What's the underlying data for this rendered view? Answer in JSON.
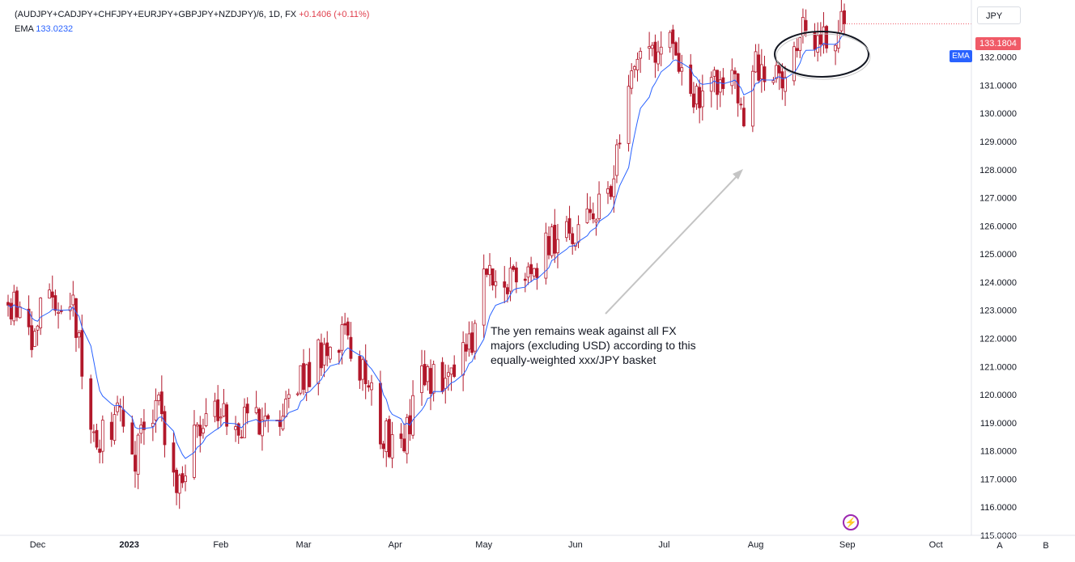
{
  "header": {
    "symbol": "(AUDJPY+CADJPY+CHFJPY+EURJPY+GBPJPY+NZDJPY)/6, 1D, FX",
    "change": "+0.1406 (+0.11%)",
    "ema_label": "EMA",
    "ema_value": "133.0232"
  },
  "currency_button": "JPY",
  "price_label": "133.1804",
  "ema_tag": "EMA",
  "annotation": "The yen remains weak against all FX majors (excluding USD) according to this equally-weighted xxx/JPY basket",
  "flash_icon": "lightning-icon",
  "buttons": {
    "a": "A",
    "b": "B"
  },
  "colors": {
    "up": "#ffffff",
    "down": "#b2182b",
    "ema": "#2962ff",
    "last_price": "#f05a67"
  },
  "chart_data": {
    "type": "candlestick",
    "yaxis": {
      "min": 115,
      "max": 133.8,
      "ticks": [
        115,
        116,
        117,
        118,
        119,
        120,
        121,
        122,
        123,
        124,
        125,
        126,
        127,
        128,
        129,
        130,
        131,
        132
      ],
      "tick_labels": [
        "115.0000",
        "116.0000",
        "117.0000",
        "118.0000",
        "119.0000",
        "120.0000",
        "121.0000",
        "122.0000",
        "123.0000",
        "124.0000",
        "125.0000",
        "126.0000",
        "127.0000",
        "128.0000",
        "129.0000",
        "130.0000",
        "131.0000",
        "132.0000"
      ]
    },
    "xaxis": {
      "start": "2022-11-21",
      "end": "2023-10-13",
      "ticks": [
        {
          "date": "2022-12-01",
          "label": "Dec"
        },
        {
          "date": "2023-01-01",
          "label": "2023"
        },
        {
          "date": "2023-02-01",
          "label": "Feb"
        },
        {
          "date": "2023-03-01",
          "label": "Mar"
        },
        {
          "date": "2023-04-01",
          "label": "Apr"
        },
        {
          "date": "2023-05-01",
          "label": "May"
        },
        {
          "date": "2023-06-01",
          "label": "Jun"
        },
        {
          "date": "2023-07-01",
          "label": "Jul"
        },
        {
          "date": "2023-08-01",
          "label": "Aug"
        },
        {
          "date": "2023-09-01",
          "label": "Sep"
        },
        {
          "date": "2023-10-01",
          "label": "Oct"
        }
      ]
    },
    "price_path": [
      {
        "date": "2022-11-21",
        "close": 123.3
      },
      {
        "date": "2022-11-29",
        "close": 122.2
      },
      {
        "date": "2022-12-06",
        "close": 123.6
      },
      {
        "date": "2022-12-13",
        "close": 123.3
      },
      {
        "date": "2022-12-20",
        "close": 118.3
      },
      {
        "date": "2022-12-28",
        "close": 119.2
      },
      {
        "date": "2023-01-03",
        "close": 117.8
      },
      {
        "date": "2023-01-10",
        "close": 119.8
      },
      {
        "date": "2023-01-17",
        "close": 117.0
      },
      {
        "date": "2023-01-24",
        "close": 118.6
      },
      {
        "date": "2023-02-01",
        "close": 119.4
      },
      {
        "date": "2023-02-10",
        "close": 119.0
      },
      {
        "date": "2023-02-20",
        "close": 119.2
      },
      {
        "date": "2023-03-01",
        "close": 120.6
      },
      {
        "date": "2023-03-08",
        "close": 121.6
      },
      {
        "date": "2023-03-15",
        "close": 121.9
      },
      {
        "date": "2023-03-22",
        "close": 120.8
      },
      {
        "date": "2023-03-28",
        "close": 118.5
      },
      {
        "date": "2023-04-03",
        "close": 118.2
      },
      {
        "date": "2023-04-10",
        "close": 120.4
      },
      {
        "date": "2023-04-20",
        "close": 120.9
      },
      {
        "date": "2023-04-28",
        "close": 122.3
      },
      {
        "date": "2023-05-01",
        "close": 124.5
      },
      {
        "date": "2023-05-08",
        "close": 123.9
      },
      {
        "date": "2023-05-15",
        "close": 124.2
      },
      {
        "date": "2023-05-25",
        "close": 125.6
      },
      {
        "date": "2023-06-02",
        "close": 126.0
      },
      {
        "date": "2023-06-12",
        "close": 126.8
      },
      {
        "date": "2023-06-15",
        "close": 128.6
      },
      {
        "date": "2023-06-20",
        "close": 131.0
      },
      {
        "date": "2023-06-27",
        "close": 132.4
      },
      {
        "date": "2023-07-04",
        "close": 132.2
      },
      {
        "date": "2023-07-12",
        "close": 130.6
      },
      {
        "date": "2023-07-18",
        "close": 130.9
      },
      {
        "date": "2023-07-25",
        "close": 131.6
      },
      {
        "date": "2023-07-28",
        "close": 129.8
      },
      {
        "date": "2023-08-01",
        "close": 131.9
      },
      {
        "date": "2023-08-08",
        "close": 131.1
      },
      {
        "date": "2023-08-14",
        "close": 132.3
      },
      {
        "date": "2023-08-18",
        "close": 133.0
      },
      {
        "date": "2023-08-24",
        "close": 132.7
      },
      {
        "date": "2023-08-31",
        "close": 133.18
      }
    ],
    "last_price": 133.1804,
    "ema_last": 133.0232
  }
}
